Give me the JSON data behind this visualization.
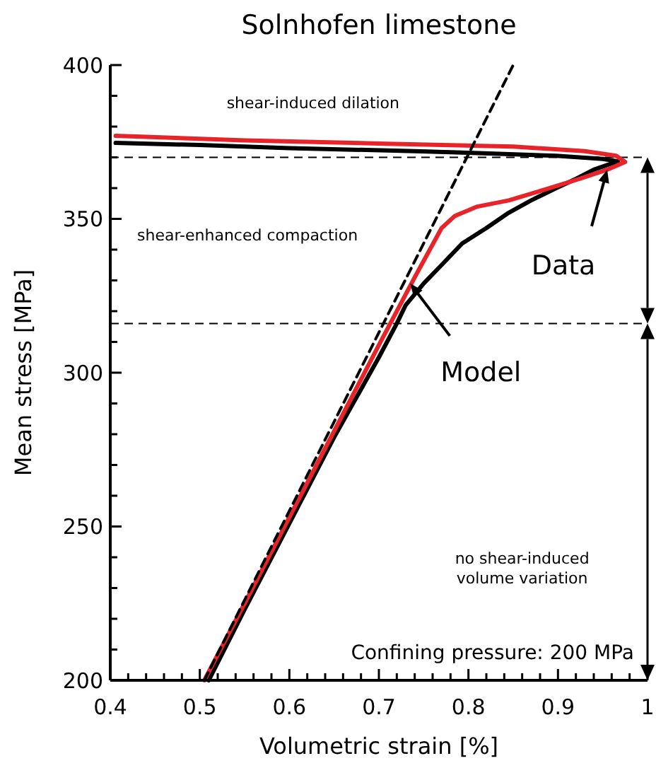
{
  "chart_data": {
    "type": "line",
    "title": "Solnhofen limestone",
    "xlabel": "Volumetric strain [%]",
    "ylabel": "Mean stress [MPa]",
    "xlim": [
      0.4,
      1
    ],
    "xticks": [
      0.4,
      {
        "value": 0.42,
        "label": null
      },
      {
        "value": 0.44,
        "label": null
      },
      {
        "value": 0.46,
        "label": null
      },
      {
        "value": 0.48,
        "label": null
      },
      0.5,
      {
        "value": 0.52,
        "label": null
      },
      {
        "value": 0.54,
        "label": null
      },
      {
        "value": 0.56,
        "label": null
      },
      {
        "value": 0.58,
        "label": null
      },
      0.6,
      {
        "value": 0.62,
        "label": null
      },
      {
        "value": 0.64,
        "label": null
      },
      {
        "value": 0.66,
        "label": null
      },
      {
        "value": 0.68,
        "label": null
      },
      0.7,
      {
        "value": 0.72,
        "label": null
      },
      {
        "value": 0.74,
        "label": null
      },
      {
        "value": 0.76,
        "label": null
      },
      {
        "value": 0.78,
        "label": null
      },
      0.8,
      {
        "value": 0.82,
        "label": null
      },
      {
        "value": 0.84,
        "label": null
      },
      {
        "value": 0.86,
        "label": null
      },
      {
        "value": 0.88,
        "label": null
      },
      0.9,
      {
        "value": 0.92,
        "label": null
      },
      {
        "value": 0.94,
        "label": null
      },
      {
        "value": 0.96,
        "label": null
      },
      {
        "value": 0.98,
        "label": null
      },
      1
    ],
    "ylim": [
      200,
      400
    ],
    "yticks": [
      200,
      {
        "value": 210,
        "label": null
      },
      {
        "value": 220,
        "label": null
      },
      {
        "value": 230,
        "label": null
      },
      {
        "value": 240,
        "label": null
      },
      250,
      {
        "value": 260,
        "label": null
      },
      {
        "value": 270,
        "label": null
      },
      {
        "value": 280,
        "label": null
      },
      {
        "value": 290,
        "label": null
      },
      300,
      {
        "value": 310,
        "label": null
      },
      {
        "value": 320,
        "label": null
      },
      {
        "value": 330,
        "label": null
      },
      {
        "value": 340,
        "label": null
      },
      350,
      {
        "value": 360,
        "label": null
      },
      {
        "value": 370,
        "label": null
      },
      {
        "value": 380,
        "label": null
      },
      {
        "value": 390,
        "label": null
      },
      400
    ],
    "series": [
      {
        "color": "#000000",
        "line_style": "solid",
        "x": [
          0.51,
          0.55,
          0.6,
          0.65,
          0.7,
          0.72,
          0.73,
          0.75,
          0.77,
          0.793,
          0.82,
          0.845,
          0.87,
          0.898,
          0.92,
          0.94,
          0.967,
          0.95,
          0.898,
          0.8,
          0.74,
          0.6,
          0.5,
          0.406
        ],
        "values": [
          200,
          223,
          251,
          279,
          305,
          316,
          322,
          329,
          335,
          342,
          347,
          352,
          356,
          360,
          363,
          366,
          368.7,
          369.5,
          370.5,
          371.5,
          372,
          373,
          374,
          374.7
        ]
      },
      {
        "color": "#e8232a",
        "line_style": "solid",
        "x": [
          0.505,
          0.55,
          0.6,
          0.65,
          0.7,
          0.74,
          0.77,
          0.785,
          0.81,
          0.845,
          0.885,
          0.924,
          0.955,
          0.975,
          0.965,
          0.93,
          0.85,
          0.7,
          0.55,
          0.406
        ],
        "values": [
          200,
          225,
          253,
          281,
          309,
          331,
          347,
          351,
          354,
          356,
          359.5,
          363,
          366,
          368.5,
          370.5,
          372,
          373.5,
          374.5,
          375.5,
          377
        ]
      },
      {
        "color": "#000000",
        "line_style": "dashed",
        "x": [
          0.505,
          0.85
        ],
        "values": [
          200,
          400
        ]
      }
    ],
    "ref_lines": [
      {
        "axis": "y",
        "value": 370,
        "color": "#000000",
        "line_style": "dashed"
      },
      {
        "axis": "y",
        "value": 316,
        "color": "#000000",
        "line_style": "dashed"
      }
    ],
    "annotations": [
      "shear-induced dilation",
      "shear-enhanced compaction",
      "no shear-induced volume variation",
      "Confining pressure: 200 MPa",
      {
        "text": "Data",
        "x": 0.955,
        "y": 366
      },
      {
        "text": "Model",
        "x": 0.735,
        "y": 329
      }
    ]
  }
}
